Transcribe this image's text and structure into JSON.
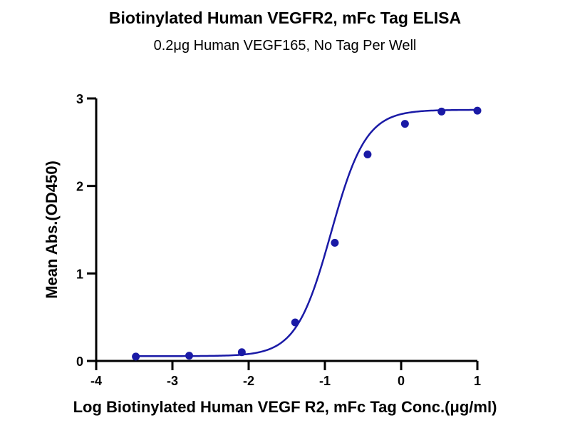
{
  "chart_data": {
    "type": "scatter",
    "title": "Biotinylated Human VEGFR2, mFc Tag ELISA",
    "subtitle": "0.2μg Human VEGF165, No Tag Per Well",
    "xlabel": "Log Biotinylated Human VEGF R2, mFc Tag Conc.(μg/ml)",
    "ylabel": "Mean Abs.(OD450)",
    "xlim": [
      -4,
      1
    ],
    "ylim": [
      0,
      3
    ],
    "x_ticks": [
      -4,
      -3,
      -2,
      -1,
      0,
      1
    ],
    "x_tick_labels": [
      "-4",
      "-3",
      "-2",
      "-1",
      "0",
      "1"
    ],
    "y_ticks": [
      0,
      1,
      2,
      3
    ],
    "y_tick_labels": [
      "0",
      "1",
      "2",
      "3"
    ],
    "grid": false,
    "series": [
      {
        "name": "Biotinylated Human VEGFR2, mFc Tag",
        "color": "#1a1aa6",
        "x": [
          -3.48,
          -2.78,
          -2.09,
          -1.39,
          -0.87,
          -0.44,
          0.05,
          0.53,
          1.0
        ],
        "y": [
          0.05,
          0.06,
          0.1,
          0.44,
          1.35,
          2.36,
          2.71,
          2.85,
          2.86
        ]
      }
    ],
    "fit_curve": {
      "model": "4PL",
      "bottom": 0.055,
      "top": 2.87,
      "log_ec50": -0.92,
      "hill_slope": 1.9,
      "x_range": [
        -3.48,
        1.0
      ],
      "color": "#1a1aa6"
    }
  }
}
